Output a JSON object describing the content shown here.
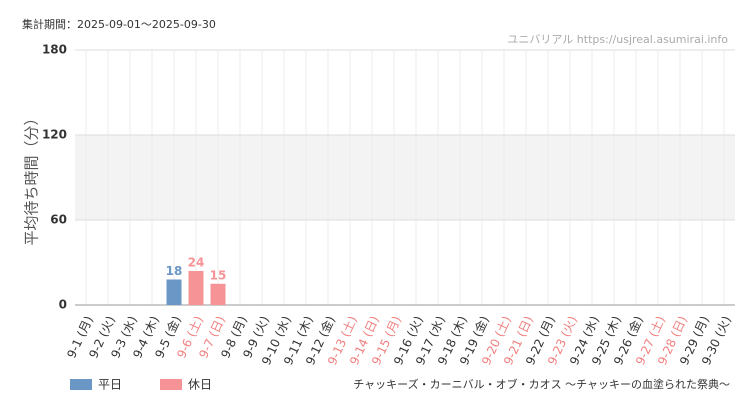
{
  "chart_data": {
    "type": "bar",
    "title": "集計期間：2025-09-01～2025-09-30",
    "watermark": "ユニバリアル  https://usjreal.asumirai.info",
    "y_label": "平均待ち時間（分）",
    "caption": "チャッキーズ・カーニバル・オブ・カオス ～チャッキーの血塗られた祭典～",
    "categories": [
      "9-1 (月)",
      "9-2 (火)",
      "9-3 (水)",
      "9-4 (木)",
      "9-5 (金)",
      "9-6 (土)",
      "9-7 (日)",
      "9-8 (月)",
      "9-9 (火)",
      "9-10 (水)",
      "9-11 (木)",
      "9-12 (金)",
      "9-13 (土)",
      "9-14 (日)",
      "9-15 (月)",
      "9-16 (火)",
      "9-17 (水)",
      "9-18 (木)",
      "9-19 (金)",
      "9-20 (土)",
      "9-21 (日)",
      "9-22 (月)",
      "9-23 (火)",
      "9-24 (水)",
      "9-25 (木)",
      "9-26 (金)",
      "9-27 (土)",
      "9-28 (日)",
      "9-29 (月)",
      "9-30 (火)"
    ],
    "category_colors": [
      "#333",
      "#333",
      "#333",
      "#333",
      "#333",
      "#f08080",
      "#f08080",
      "#333",
      "#333",
      "#333",
      "#333",
      "#333",
      "#f08080",
      "#f08080",
      "#f08080",
      "#333",
      "#333",
      "#333",
      "#333",
      "#f08080",
      "#f08080",
      "#333",
      "#f08080",
      "#333",
      "#333",
      "#333",
      "#f08080",
      "#f08080",
      "#333",
      "#333"
    ],
    "series": [
      {
        "name": "平日",
        "color": "#6b97c6",
        "values": [
          null,
          null,
          null,
          null,
          18,
          null,
          null,
          null,
          null,
          null,
          null,
          null,
          null,
          null,
          null,
          null,
          null,
          null,
          null,
          null,
          null,
          null,
          null,
          null,
          null,
          null,
          null,
          null,
          null,
          null
        ]
      },
      {
        "name": "休日",
        "color": "#f59397",
        "values": [
          null,
          null,
          null,
          null,
          null,
          24,
          15,
          null,
          null,
          null,
          null,
          null,
          null,
          null,
          null,
          null,
          null,
          null,
          null,
          null,
          null,
          null,
          null,
          null,
          null,
          null,
          null,
          null,
          null,
          null
        ]
      }
    ],
    "ylim": [
      0,
      180
    ],
    "yticks": [
      0,
      60,
      120,
      180
    ],
    "grid": true
  }
}
